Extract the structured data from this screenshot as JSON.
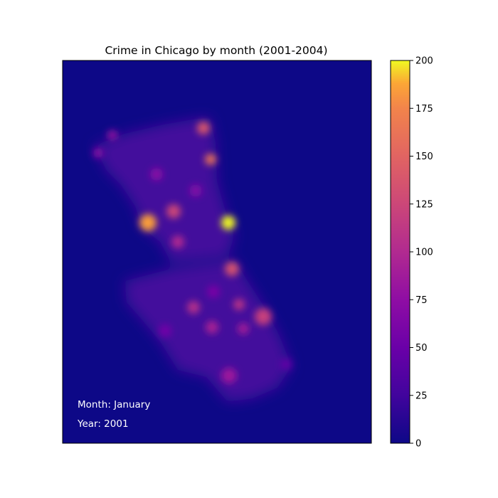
{
  "chart_data": {
    "type": "heatmap",
    "title": "Crime in Chicago by month (2001-2004)",
    "colormap": "plasma",
    "colorbar": {
      "min": 0,
      "max": 200,
      "ticks": [
        "0",
        "25",
        "50",
        "75",
        "100",
        "125",
        "150",
        "175",
        "200"
      ]
    },
    "annotations": {
      "month": "Month: January",
      "year": "Year: 2001"
    },
    "hotspots": [
      {
        "value": 200
      },
      {
        "value": 185
      },
      {
        "value": 160
      },
      {
        "value": 140
      },
      {
        "value": 135
      },
      {
        "value": 125
      },
      {
        "value": 120
      },
      {
        "value": 110
      },
      {
        "value": 105
      },
      {
        "value": 100
      },
      {
        "value": 95
      },
      {
        "value": 90
      },
      {
        "value": 85
      },
      {
        "value": 80
      },
      {
        "value": 75
      },
      {
        "value": 70
      },
      {
        "value": 65
      },
      {
        "value": 60
      },
      {
        "value": 55
      },
      {
        "value": 45
      }
    ],
    "xlabel": "",
    "ylabel": "",
    "grid": false
  }
}
